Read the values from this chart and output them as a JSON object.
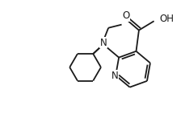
{
  "background_color": "#ffffff",
  "line_color": "#1a1a1a",
  "line_width": 1.3,
  "font_size": 8.5,
  "figsize": [
    2.29,
    1.52
  ],
  "dpi": 100,
  "xlim": [
    0,
    10
  ],
  "ylim": [
    0,
    6.6
  ]
}
